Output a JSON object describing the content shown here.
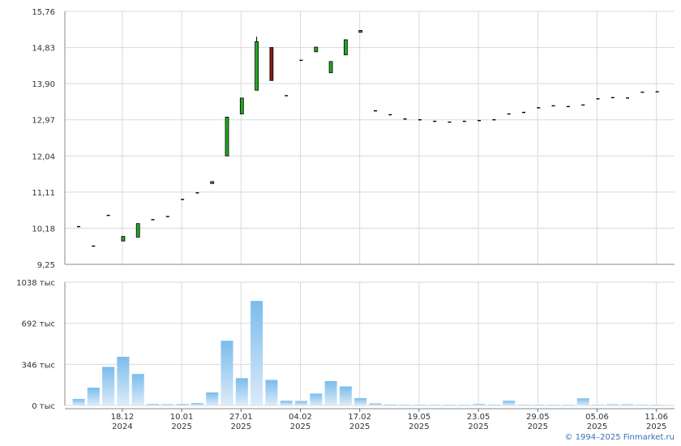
{
  "chart_data": [
    {
      "type": "candlestick",
      "title": "",
      "ylim": [
        9.25,
        15.76
      ],
      "yticks": [
        "15,76",
        "14,83",
        "13,90",
        "12,97",
        "12,04",
        "11,11",
        "10,18",
        "9,25"
      ],
      "grid": true,
      "candles": [
        {
          "o": 10.22,
          "h": 10.22,
          "l": 10.22,
          "c": 10.22
        },
        {
          "o": 9.72,
          "h": 9.72,
          "l": 9.72,
          "c": 9.72
        },
        {
          "o": 10.51,
          "h": 10.51,
          "l": 10.51,
          "c": 10.51
        },
        {
          "o": 9.85,
          "h": 9.97,
          "l": 9.85,
          "c": 9.97
        },
        {
          "o": 9.95,
          "h": 10.3,
          "l": 9.95,
          "c": 10.3
        },
        {
          "o": 10.4,
          "h": 10.4,
          "l": 10.4,
          "c": 10.4
        },
        {
          "o": 10.48,
          "h": 10.48,
          "l": 10.48,
          "c": 10.48
        },
        {
          "o": 10.92,
          "h": 10.92,
          "l": 10.92,
          "c": 10.92
        },
        {
          "o": 11.09,
          "h": 11.09,
          "l": 11.09,
          "c": 11.09
        },
        {
          "o": 11.33,
          "h": 11.38,
          "l": 11.33,
          "c": 11.38
        },
        {
          "o": 12.04,
          "h": 13.04,
          "l": 12.04,
          "c": 13.04
        },
        {
          "o": 13.12,
          "h": 13.53,
          "l": 13.12,
          "c": 13.53
        },
        {
          "o": 13.73,
          "h": 15.11,
          "l": 13.73,
          "c": 14.98
        },
        {
          "o": 14.83,
          "h": 14.83,
          "l": 13.98,
          "c": 13.98
        },
        {
          "o": 13.59,
          "h": 13.59,
          "l": 13.59,
          "c": 13.59
        },
        {
          "o": 14.5,
          "h": 14.5,
          "l": 14.5,
          "c": 14.5
        },
        {
          "o": 14.72,
          "h": 14.84,
          "l": 14.72,
          "c": 14.84
        },
        {
          "o": 14.18,
          "h": 14.47,
          "l": 14.18,
          "c": 14.47
        },
        {
          "o": 14.64,
          "h": 15.03,
          "l": 14.64,
          "c": 15.03
        },
        {
          "o": 15.22,
          "h": 15.27,
          "l": 15.22,
          "c": 15.27
        },
        {
          "o": 13.2,
          "h": 13.2,
          "l": 13.2,
          "c": 13.2
        },
        {
          "o": 13.1,
          "h": 13.1,
          "l": 13.1,
          "c": 13.1
        },
        {
          "o": 12.99,
          "h": 12.99,
          "l": 12.99,
          "c": 12.99
        },
        {
          "o": 12.97,
          "h": 12.97,
          "l": 12.97,
          "c": 12.97
        },
        {
          "o": 12.93,
          "h": 12.93,
          "l": 12.93,
          "c": 12.93
        },
        {
          "o": 12.91,
          "h": 12.91,
          "l": 12.91,
          "c": 12.91
        },
        {
          "o": 12.93,
          "h": 12.93,
          "l": 12.93,
          "c": 12.93
        },
        {
          "o": 12.95,
          "h": 12.95,
          "l": 12.95,
          "c": 12.95
        },
        {
          "o": 12.97,
          "h": 12.97,
          "l": 12.97,
          "c": 12.97
        },
        {
          "o": 13.12,
          "h": 13.12,
          "l": 13.12,
          "c": 13.12
        },
        {
          "o": 13.16,
          "h": 13.16,
          "l": 13.16,
          "c": 13.16
        },
        {
          "o": 13.28,
          "h": 13.28,
          "l": 13.28,
          "c": 13.28
        },
        {
          "o": 13.33,
          "h": 13.33,
          "l": 13.33,
          "c": 13.33
        },
        {
          "o": 13.31,
          "h": 13.31,
          "l": 13.31,
          "c": 13.31
        },
        {
          "o": 13.35,
          "h": 13.35,
          "l": 13.35,
          "c": 13.35
        },
        {
          "o": 13.51,
          "h": 13.51,
          "l": 13.51,
          "c": 13.51
        },
        {
          "o": 13.54,
          "h": 13.54,
          "l": 13.54,
          "c": 13.54
        },
        {
          "o": 13.53,
          "h": 13.53,
          "l": 13.53,
          "c": 13.53
        },
        {
          "o": 13.68,
          "h": 13.68,
          "l": 13.68,
          "c": 13.68
        },
        {
          "o": 13.69,
          "h": 13.69,
          "l": 13.69,
          "c": 13.69
        }
      ],
      "colors": {
        "up": "#22a822",
        "down": "#8b1a1a",
        "flat": "#000000",
        "grid": "#d9d9d9"
      }
    },
    {
      "type": "bar",
      "title": "",
      "ylim": [
        0,
        1038
      ],
      "yticks": [
        "1038 тыс",
        "692 тыс",
        "346 тыс",
        "0 тыс"
      ],
      "values": [
        55,
        150,
        325,
        410,
        265,
        12,
        10,
        12,
        20,
        110,
        545,
        230,
        880,
        215,
        40,
        38,
        100,
        205,
        160,
        62,
        18,
        8,
        6,
        5,
        5,
        5,
        5,
        12,
        6,
        40,
        5,
        5,
        5,
        5,
        60,
        5,
        10,
        10,
        5,
        5
      ],
      "bar_colors": {
        "top": "#7bbcec",
        "bottom": "#dcebf9"
      }
    }
  ],
  "x_ticks": [
    {
      "top": "18.12",
      "bottom": "2024",
      "index": 3
    },
    {
      "top": "10.01",
      "bottom": "2025",
      "index": 7
    },
    {
      "top": "27.01",
      "bottom": "2025",
      "index": 11
    },
    {
      "top": "04.02",
      "bottom": "2025",
      "index": 15
    },
    {
      "top": "17.02",
      "bottom": "2025",
      "index": 19
    },
    {
      "top": "19.05",
      "bottom": "2025",
      "index": 23
    },
    {
      "top": "23.05",
      "bottom": "2025",
      "index": 27
    },
    {
      "top": "29.05",
      "bottom": "2025",
      "index": 31
    },
    {
      "top": "05.06",
      "bottom": "2025",
      "index": 35
    },
    {
      "top": "11.06",
      "bottom": "2025",
      "index": 39
    }
  ],
  "copyright": "© 1994–2025 Finmarket.ru"
}
